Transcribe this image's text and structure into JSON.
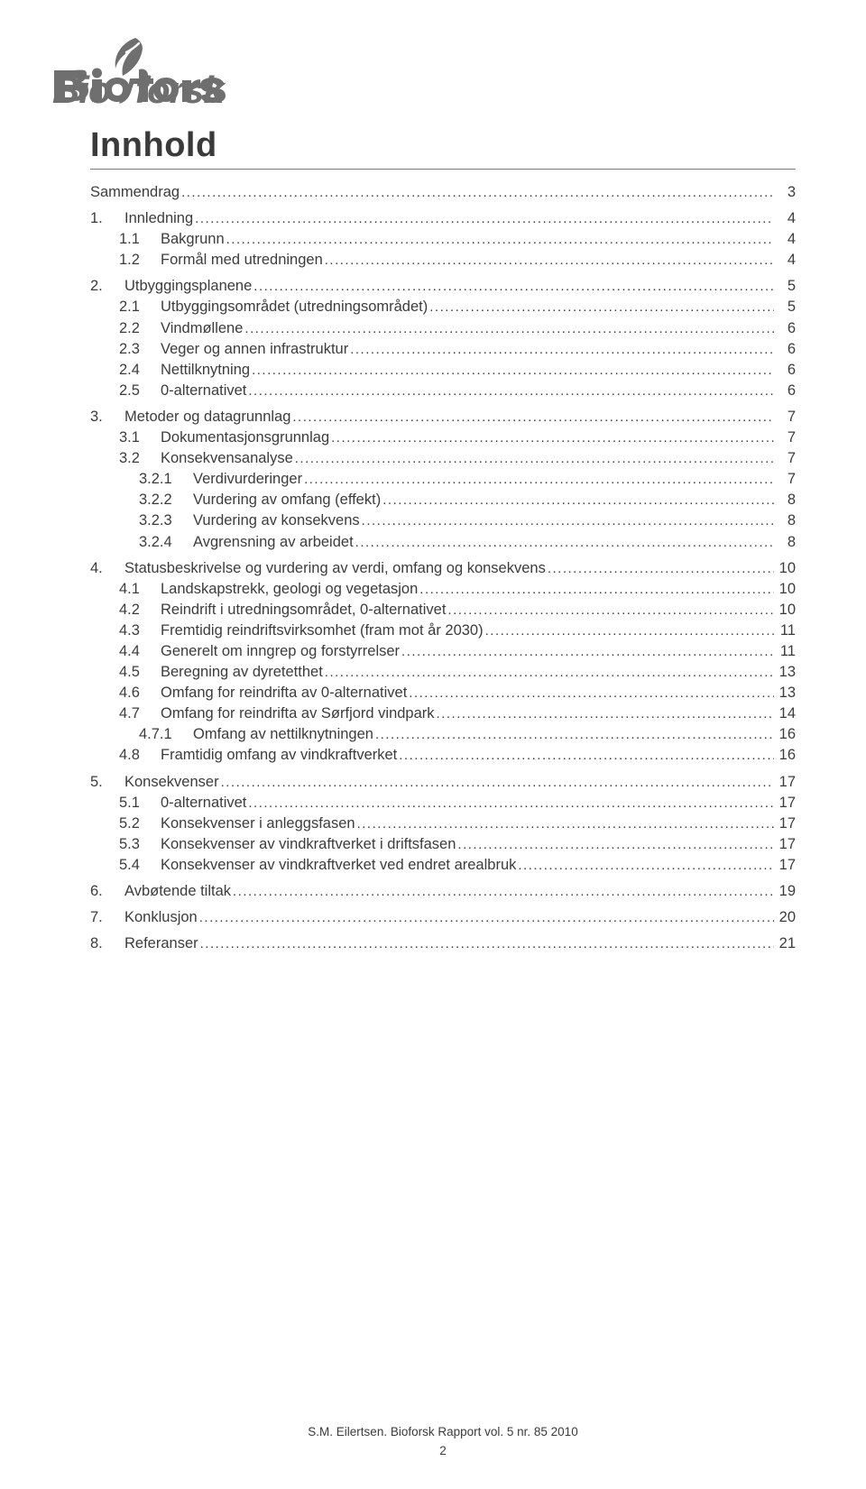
{
  "logo": {
    "text": "Bioforsk"
  },
  "title": "Innhold",
  "toc": [
    {
      "level": 1,
      "num": "",
      "text": "Sammendrag",
      "page": "3",
      "spaceBefore": 0
    },
    {
      "level": 1,
      "num": "1.",
      "text": "Innledning",
      "page": "4",
      "spaceBefore": 1
    },
    {
      "level": 2,
      "num": "1.1",
      "text": "Bakgrunn",
      "page": "4",
      "spaceBefore": 0
    },
    {
      "level": 2,
      "num": "1.2",
      "text": "Formål med utredningen",
      "page": "4",
      "spaceBefore": 0
    },
    {
      "level": 1,
      "num": "2.",
      "text": "Utbyggingsplanene",
      "page": "5",
      "spaceBefore": 1
    },
    {
      "level": 2,
      "num": "2.1",
      "text": "Utbyggingsområdet (utredningsområdet)",
      "page": "5",
      "spaceBefore": 0
    },
    {
      "level": 2,
      "num": "2.2",
      "text": "Vindmøllene",
      "page": "6",
      "spaceBefore": 0
    },
    {
      "level": 2,
      "num": "2.3",
      "text": "Veger og annen infrastruktur",
      "page": "6",
      "spaceBefore": 0
    },
    {
      "level": 2,
      "num": "2.4",
      "text": "Nettilknytning",
      "page": "6",
      "spaceBefore": 0
    },
    {
      "level": 2,
      "num": "2.5",
      "text": "0-alternativet",
      "page": "6",
      "spaceBefore": 0
    },
    {
      "level": 1,
      "num": "3.",
      "text": "Metoder og datagrunnlag",
      "page": "7",
      "spaceBefore": 1
    },
    {
      "level": 2,
      "num": "3.1",
      "text": "Dokumentasjonsgrunnlag",
      "page": "7",
      "spaceBefore": 0
    },
    {
      "level": 2,
      "num": "3.2",
      "text": "Konsekvensanalyse",
      "page": "7",
      "spaceBefore": 0
    },
    {
      "level": 3,
      "num": "3.2.1",
      "text": "Verdivurderinger",
      "page": "7",
      "spaceBefore": 0
    },
    {
      "level": 3,
      "num": "3.2.2",
      "text": "Vurdering av omfang (effekt)",
      "page": "8",
      "spaceBefore": 0
    },
    {
      "level": 3,
      "num": "3.2.3",
      "text": "Vurdering av konsekvens",
      "page": "8",
      "spaceBefore": 0
    },
    {
      "level": 3,
      "num": "3.2.4",
      "text": "Avgrensning av arbeidet",
      "page": "8",
      "spaceBefore": 0
    },
    {
      "level": 1,
      "num": "4.",
      "text": "Statusbeskrivelse og vurdering av verdi, omfang og konsekvens",
      "page": "10",
      "spaceBefore": 1
    },
    {
      "level": 2,
      "num": "4.1",
      "text": "Landskapstrekk, geologi og vegetasjon",
      "page": "10",
      "spaceBefore": 0
    },
    {
      "level": 2,
      "num": "4.2",
      "text": "Reindrift i utredningsområdet, 0-alternativet",
      "page": "10",
      "spaceBefore": 0
    },
    {
      "level": 2,
      "num": "4.3",
      "text": "Fremtidig reindriftsvirksomhet (fram mot år 2030)",
      "page": "11",
      "spaceBefore": 0
    },
    {
      "level": 2,
      "num": "4.4",
      "text": "Generelt om inngrep og forstyrrelser",
      "page": "11",
      "spaceBefore": 0
    },
    {
      "level": 2,
      "num": "4.5",
      "text": "Beregning av dyretetthet",
      "page": "13",
      "spaceBefore": 0
    },
    {
      "level": 2,
      "num": "4.6",
      "text": "Omfang for reindrifta av 0-alternativet",
      "page": "13",
      "spaceBefore": 0
    },
    {
      "level": 2,
      "num": "4.7",
      "text": "Omfang for reindrifta av Sørfjord vindpark",
      "page": "14",
      "spaceBefore": 0
    },
    {
      "level": 3,
      "num": "4.7.1",
      "text": "Omfang av nettilknytningen",
      "page": "16",
      "spaceBefore": 0
    },
    {
      "level": 2,
      "num": "4.8",
      "text": "Framtidig omfang av vindkraftverket",
      "page": "16",
      "spaceBefore": 0
    },
    {
      "level": 1,
      "num": "5.",
      "text": "Konsekvenser",
      "page": "17",
      "spaceBefore": 1
    },
    {
      "level": 2,
      "num": "5.1",
      "text": "0-alternativet",
      "page": "17",
      "spaceBefore": 0
    },
    {
      "level": 2,
      "num": "5.2",
      "text": "Konsekvenser i anleggsfasen",
      "page": "17",
      "spaceBefore": 0
    },
    {
      "level": 2,
      "num": "5.3",
      "text": "Konsekvenser av vindkraftverket i driftsfasen",
      "page": "17",
      "spaceBefore": 0
    },
    {
      "level": 2,
      "num": "5.4",
      "text": "Konsekvenser av vindkraftverket ved endret arealbruk",
      "page": "17",
      "spaceBefore": 0
    },
    {
      "level": 1,
      "num": "6.",
      "text": "Avbøtende tiltak",
      "page": "19",
      "spaceBefore": 1
    },
    {
      "level": 1,
      "num": "7.",
      "text": "Konklusjon",
      "page": "20",
      "spaceBefore": 1
    },
    {
      "level": 1,
      "num": "8.",
      "text": "Referanser",
      "page": "21",
      "spaceBefore": 1
    }
  ],
  "footer": {
    "line1": "S.M. Eilertsen. Bioforsk Rapport vol. 5 nr.  85  2010",
    "pageNum": "2"
  },
  "colors": {
    "text": "#3c3c3c",
    "rule": "#7a7a7a",
    "logo": "#6f6f6f",
    "background": "#ffffff"
  }
}
